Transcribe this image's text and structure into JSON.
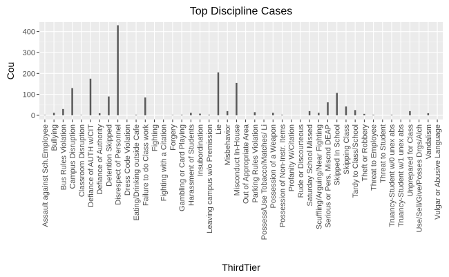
{
  "chart_data": {
    "type": "bar",
    "title": "Top Discipline Cases",
    "xlabel": "ThirdTier",
    "ylabel": "Cou",
    "ylim": [
      -20,
      445
    ],
    "yticks": [
      0,
      100,
      200,
      300,
      400
    ],
    "grid": true,
    "colors": {
      "panel": "#ebebeb",
      "grid_major": "#ffffff",
      "bar": "#595959",
      "text": "#4d4d4d"
    },
    "categories": [
      "Assault against Sch.Employee",
      "Bullying",
      "Bus Rules Violation",
      "Campus Disruption",
      "Classroom Disruption",
      "Defiance of AUTH w/CIT",
      "Defiance of Authority",
      "Detention Skipped",
      "Disrespect of Personnel",
      "Dress Code Violation",
      "Eating/Drinking outside Cafe",
      "Failure to do Class work",
      "Fighting",
      "Fighting with a Citation",
      "Forgery",
      "Gambling or Card Playing",
      "Harassment of Students",
      "Insubordination",
      "Leaving campus w/o Premission",
      "Lie",
      "Misbehavior",
      "Misconduct In-House",
      "Out of Appropriate Area",
      "Parking Rules Violation",
      "Possess/Use Tobacco/Matches/ Li",
      "Possession of a Weapon",
      "Possession of Non-Instr. Items",
      "Profanity W/Citation",
      "Rude or Discourteous",
      "Saturday School Missed",
      "Scuffling/Arguing/Near Fighting",
      "Serious or Pers. Miscnd DEAP",
      "Skipped In School",
      "Skipping Class",
      "Tardy to Class/School",
      "Theft or Robbery",
      "Threat to Employee",
      "Threat to Student",
      "Truancy-Student w/0 unex abs",
      "Truancy-Student w/1 unex abs",
      "Unprepared for Class",
      "Use/Sell/Give/Posses Drgs/Alch",
      "Vandalism",
      "Vulgar or Abusive Language"
    ],
    "values": [
      2,
      12,
      30,
      130,
      2,
      175,
      10,
      90,
      430,
      0,
      3,
      85,
      0,
      0,
      2,
      3,
      12,
      8,
      3,
      205,
      20,
      155,
      0,
      15,
      0,
      12,
      3,
      0,
      0,
      20,
      12,
      62,
      107,
      42,
      25,
      7,
      3,
      0,
      3,
      0,
      20,
      0,
      10,
      0
    ]
  }
}
